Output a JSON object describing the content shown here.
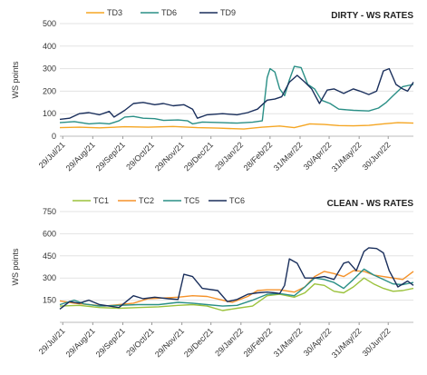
{
  "chart_data": [
    {
      "type": "line",
      "title": "DIRTY - WS RATES",
      "ylabel": "WS points",
      "xlabel": "",
      "ylim": [
        0,
        500
      ],
      "yticks": [
        0,
        100,
        200,
        300,
        400,
        500
      ],
      "xlim": [
        "2021-07-26",
        "2022-07-26"
      ],
      "xticks": [
        "29/Jul/21",
        "29/Aug/21",
        "29/Sep/21",
        "29/Oct/21",
        "29/Nov/21",
        "29/Dec/21",
        "29/Jan/22",
        "28/Feb/22",
        "31/Mar/22",
        "30/Apr/22",
        "31/May/22",
        "30/Jun/22"
      ],
      "xtick_dates": [
        "2021-07-29",
        "2021-08-29",
        "2021-09-29",
        "2021-10-29",
        "2021-11-29",
        "2021-12-29",
        "2022-01-29",
        "2022-02-28",
        "2022-03-31",
        "2022-04-30",
        "2022-05-31",
        "2022-06-30"
      ],
      "grid": "horizontal",
      "legend": "top",
      "series": [
        {
          "name": "TD3",
          "color": "#f5a623",
          "points": [
            [
              "2021-07-26",
              38
            ],
            [
              "2021-08-15",
              40
            ],
            [
              "2021-09-05",
              37
            ],
            [
              "2021-10-01",
              42
            ],
            [
              "2021-10-25",
              40
            ],
            [
              "2021-11-20",
              43
            ],
            [
              "2021-12-15",
              38
            ],
            [
              "2022-01-05",
              36
            ],
            [
              "2022-02-01",
              32
            ],
            [
              "2022-02-20",
              40
            ],
            [
              "2022-03-10",
              45
            ],
            [
              "2022-03-25",
              38
            ],
            [
              "2022-04-10",
              55
            ],
            [
              "2022-04-25",
              52
            ],
            [
              "2022-05-10",
              47
            ],
            [
              "2022-05-25",
              46
            ],
            [
              "2022-06-10",
              48
            ],
            [
              "2022-06-25",
              55
            ],
            [
              "2022-07-10",
              60
            ],
            [
              "2022-07-26",
              58
            ]
          ]
        },
        {
          "name": "TD6",
          "color": "#2a8f86",
          "points": [
            [
              "2021-07-26",
              60
            ],
            [
              "2021-08-10",
              65
            ],
            [
              "2021-08-25",
              55
            ],
            [
              "2021-09-05",
              58
            ],
            [
              "2021-09-15",
              55
            ],
            [
              "2021-09-25",
              68
            ],
            [
              "2021-10-01",
              85
            ],
            [
              "2021-10-10",
              88
            ],
            [
              "2021-10-20",
              80
            ],
            [
              "2021-11-01",
              78
            ],
            [
              "2021-11-10",
              70
            ],
            [
              "2021-11-25",
              72
            ],
            [
              "2021-12-05",
              68
            ],
            [
              "2021-12-10",
              55
            ],
            [
              "2021-12-20",
              63
            ],
            [
              "2022-01-10",
              60
            ],
            [
              "2022-01-25",
              58
            ],
            [
              "2022-02-10",
              62
            ],
            [
              "2022-02-20",
              68
            ],
            [
              "2022-02-25",
              260
            ],
            [
              "2022-02-28",
              300
            ],
            [
              "2022-03-05",
              285
            ],
            [
              "2022-03-10",
              210
            ],
            [
              "2022-03-15",
              180
            ],
            [
              "2022-03-20",
              250
            ],
            [
              "2022-03-25",
              310
            ],
            [
              "2022-04-01",
              305
            ],
            [
              "2022-04-08",
              230
            ],
            [
              "2022-04-15",
              210
            ],
            [
              "2022-04-22",
              160
            ],
            [
              "2022-05-01",
              145
            ],
            [
              "2022-05-10",
              120
            ],
            [
              "2022-05-25",
              115
            ],
            [
              "2022-06-10",
              112
            ],
            [
              "2022-06-20",
              125
            ],
            [
              "2022-06-28",
              150
            ],
            [
              "2022-07-05",
              180
            ],
            [
              "2022-07-15",
              220
            ],
            [
              "2022-07-26",
              230
            ]
          ]
        },
        {
          "name": "TD9",
          "color": "#1a2f5c",
          "points": [
            [
              "2021-07-26",
              75
            ],
            [
              "2021-08-05",
              80
            ],
            [
              "2021-08-15",
              100
            ],
            [
              "2021-08-25",
              105
            ],
            [
              "2021-09-05",
              95
            ],
            [
              "2021-09-15",
              110
            ],
            [
              "2021-09-20",
              85
            ],
            [
              "2021-10-01",
              115
            ],
            [
              "2021-10-10",
              145
            ],
            [
              "2021-10-20",
              150
            ],
            [
              "2021-11-01",
              140
            ],
            [
              "2021-11-10",
              145
            ],
            [
              "2021-11-20",
              135
            ],
            [
              "2021-12-01",
              140
            ],
            [
              "2021-12-10",
              120
            ],
            [
              "2021-12-15",
              80
            ],
            [
              "2021-12-25",
              95
            ],
            [
              "2022-01-10",
              100
            ],
            [
              "2022-01-25",
              95
            ],
            [
              "2022-02-05",
              105
            ],
            [
              "2022-02-15",
              120
            ],
            [
              "2022-02-25",
              160
            ],
            [
              "2022-03-05",
              165
            ],
            [
              "2022-03-12",
              175
            ],
            [
              "2022-03-20",
              240
            ],
            [
              "2022-03-28",
              270
            ],
            [
              "2022-04-05",
              240
            ],
            [
              "2022-04-12",
              210
            ],
            [
              "2022-04-20",
              145
            ],
            [
              "2022-04-28",
              205
            ],
            [
              "2022-05-05",
              210
            ],
            [
              "2022-05-15",
              190
            ],
            [
              "2022-05-25",
              210
            ],
            [
              "2022-06-01",
              200
            ],
            [
              "2022-06-10",
              185
            ],
            [
              "2022-06-18",
              200
            ],
            [
              "2022-06-25",
              290
            ],
            [
              "2022-07-01",
              300
            ],
            [
              "2022-07-08",
              230
            ],
            [
              "2022-07-15",
              210
            ],
            [
              "2022-07-20",
              200
            ],
            [
              "2022-07-26",
              240
            ]
          ]
        }
      ]
    },
    {
      "type": "line",
      "title": "CLEAN - WS RATES",
      "ylabel": "WS points",
      "xlabel": "",
      "ylim": [
        0,
        750
      ],
      "yticks": [
        0,
        150,
        300,
        450,
        600,
        750
      ],
      "ytick_labels": [
        "150",
        "300",
        "450",
        "600",
        "750"
      ],
      "xlim": [
        "2021-07-26",
        "2022-07-26"
      ],
      "xticks": [
        "29/Jul/21",
        "29/Aug/21",
        "29/Sep/21",
        "29/Oct/21",
        "29/Nov/21",
        "29/Dec/21",
        "29/Jan/22",
        "28/Feb/22",
        "31/Mar/22",
        "30/Apr/22",
        "31/May/22",
        "30/Jun/22"
      ],
      "xtick_dates": [
        "2021-07-29",
        "2021-08-29",
        "2021-09-29",
        "2021-10-29",
        "2021-11-29",
        "2021-12-29",
        "2022-01-29",
        "2022-02-28",
        "2022-03-31",
        "2022-04-30",
        "2022-05-31",
        "2022-06-30"
      ],
      "grid": "horizontal",
      "legend": "top",
      "series": [
        {
          "name": "TC1",
          "color": "#9bc23c",
          "points": [
            [
              "2021-07-26",
              110
            ],
            [
              "2021-08-15",
              115
            ],
            [
              "2021-09-05",
              100
            ],
            [
              "2021-09-25",
              95
            ],
            [
              "2021-10-15",
              100
            ],
            [
              "2021-11-05",
              105
            ],
            [
              "2021-11-25",
              115
            ],
            [
              "2021-12-10",
              120
            ],
            [
              "2021-12-25",
              110
            ],
            [
              "2022-01-10",
              80
            ],
            [
              "2022-01-25",
              95
            ],
            [
              "2022-02-10",
              110
            ],
            [
              "2022-02-25",
              180
            ],
            [
              "2022-03-10",
              190
            ],
            [
              "2022-03-25",
              170
            ],
            [
              "2022-04-05",
              200
            ],
            [
              "2022-04-15",
              260
            ],
            [
              "2022-04-25",
              250
            ],
            [
              "2022-05-05",
              210
            ],
            [
              "2022-05-15",
              200
            ],
            [
              "2022-05-25",
              240
            ],
            [
              "2022-06-05",
              300
            ],
            [
              "2022-06-15",
              260
            ],
            [
              "2022-06-25",
              230
            ],
            [
              "2022-07-05",
              210
            ],
            [
              "2022-07-15",
              215
            ],
            [
              "2022-07-26",
              230
            ]
          ]
        },
        {
          "name": "TC2",
          "color": "#f5922a",
          "points": [
            [
              "2021-07-26",
              145
            ],
            [
              "2021-08-10",
              130
            ],
            [
              "2021-08-25",
              120
            ],
            [
              "2021-09-10",
              110
            ],
            [
              "2021-09-25",
              120
            ],
            [
              "2021-10-10",
              130
            ],
            [
              "2021-10-25",
              160
            ],
            [
              "2021-11-10",
              165
            ],
            [
              "2021-11-25",
              170
            ],
            [
              "2021-12-10",
              180
            ],
            [
              "2021-12-25",
              175
            ],
            [
              "2022-01-10",
              150
            ],
            [
              "2022-01-20",
              135
            ],
            [
              "2022-02-05",
              175
            ],
            [
              "2022-02-15",
              215
            ],
            [
              "2022-02-25",
              220
            ],
            [
              "2022-03-10",
              220
            ],
            [
              "2022-03-25",
              205
            ],
            [
              "2022-04-05",
              240
            ],
            [
              "2022-04-15",
              310
            ],
            [
              "2022-04-25",
              345
            ],
            [
              "2022-05-05",
              330
            ],
            [
              "2022-05-15",
              310
            ],
            [
              "2022-05-25",
              350
            ],
            [
              "2022-06-05",
              345
            ],
            [
              "2022-06-15",
              320
            ],
            [
              "2022-06-25",
              310
            ],
            [
              "2022-07-05",
              300
            ],
            [
              "2022-07-15",
              290
            ],
            [
              "2022-07-26",
              345
            ]
          ]
        },
        {
          "name": "TC5",
          "color": "#2a8f86",
          "points": [
            [
              "2021-07-26",
              120
            ],
            [
              "2021-08-10",
              150
            ],
            [
              "2021-08-20",
              125
            ],
            [
              "2021-09-05",
              110
            ],
            [
              "2021-09-25",
              115
            ],
            [
              "2021-10-15",
              120
            ],
            [
              "2021-11-05",
              120
            ],
            [
              "2021-11-25",
              135
            ],
            [
              "2021-12-10",
              130
            ],
            [
              "2021-12-25",
              120
            ],
            [
              "2022-01-10",
              110
            ],
            [
              "2022-01-25",
              115
            ],
            [
              "2022-02-10",
              150
            ],
            [
              "2022-02-25",
              190
            ],
            [
              "2022-03-10",
              195
            ],
            [
              "2022-03-25",
              180
            ],
            [
              "2022-04-05",
              240
            ],
            [
              "2022-04-15",
              300
            ],
            [
              "2022-04-25",
              290
            ],
            [
              "2022-05-05",
              270
            ],
            [
              "2022-05-15",
              230
            ],
            [
              "2022-05-25",
              290
            ],
            [
              "2022-06-05",
              360
            ],
            [
              "2022-06-15",
              320
            ],
            [
              "2022-06-25",
              290
            ],
            [
              "2022-07-05",
              260
            ],
            [
              "2022-07-15",
              255
            ],
            [
              "2022-07-26",
              270
            ]
          ]
        },
        {
          "name": "TC6",
          "color": "#1a2f5c",
          "points": [
            [
              "2021-07-26",
              90
            ],
            [
              "2021-08-05",
              140
            ],
            [
              "2021-08-15",
              130
            ],
            [
              "2021-08-25",
              150
            ],
            [
              "2021-09-05",
              120
            ],
            [
              "2021-09-15",
              110
            ],
            [
              "2021-09-25",
              100
            ],
            [
              "2021-10-10",
              180
            ],
            [
              "2021-10-20",
              160
            ],
            [
              "2021-11-01",
              170
            ],
            [
              "2021-11-15",
              160
            ],
            [
              "2021-11-25",
              155
            ],
            [
              "2021-12-01",
              325
            ],
            [
              "2021-12-10",
              310
            ],
            [
              "2021-12-20",
              230
            ],
            [
              "2022-01-05",
              215
            ],
            [
              "2022-01-15",
              140
            ],
            [
              "2022-01-25",
              155
            ],
            [
              "2022-02-05",
              190
            ],
            [
              "2022-02-15",
              200
            ],
            [
              "2022-02-25",
              205
            ],
            [
              "2022-03-05",
              200
            ],
            [
              "2022-03-10",
              195
            ],
            [
              "2022-03-15",
              250
            ],
            [
              "2022-03-20",
              430
            ],
            [
              "2022-03-28",
              400
            ],
            [
              "2022-04-05",
              300
            ],
            [
              "2022-04-15",
              300
            ],
            [
              "2022-04-25",
              310
            ],
            [
              "2022-05-05",
              290
            ],
            [
              "2022-05-15",
              400
            ],
            [
              "2022-05-20",
              410
            ],
            [
              "2022-05-28",
              350
            ],
            [
              "2022-06-05",
              480
            ],
            [
              "2022-06-10",
              505
            ],
            [
              "2022-06-18",
              500
            ],
            [
              "2022-06-25",
              470
            ],
            [
              "2022-07-01",
              350
            ],
            [
              "2022-07-10",
              240
            ],
            [
              "2022-07-20",
              280
            ],
            [
              "2022-07-26",
              250
            ]
          ]
        }
      ]
    }
  ]
}
